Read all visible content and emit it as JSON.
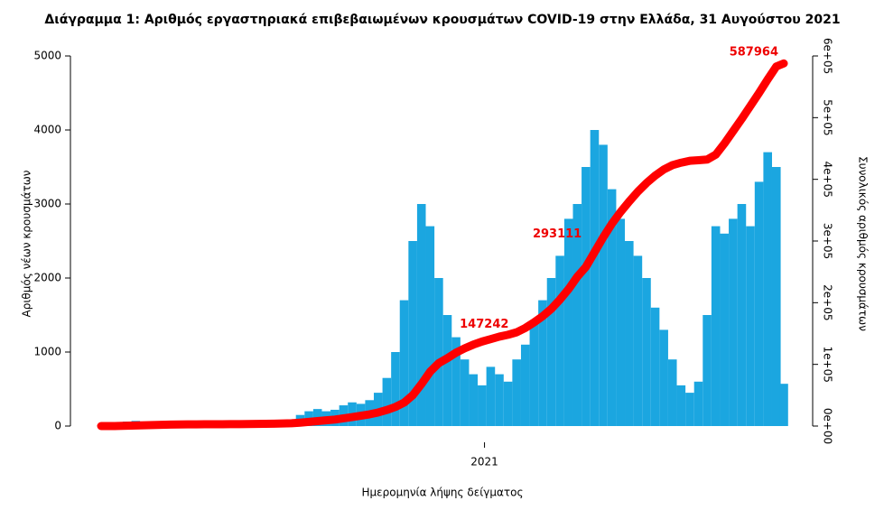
{
  "chart_data": {
    "type": "bar",
    "title": "Διάγραμμα 1: Αριθμός εργαστηριακά επιβεβαιωμένων κρουσμάτων COVID-19 στην Ελλάδα, 31 Αυγούστου 2021",
    "x_label": "Ημερομηνία λήψης δείγματος",
    "x": [
      0,
      7,
      14,
      21,
      28,
      35,
      42,
      49,
      56,
      63,
      70,
      77,
      84,
      91,
      98,
      105,
      112,
      119,
      126,
      133,
      140,
      147,
      154,
      161,
      168,
      175,
      182,
      189,
      196,
      203,
      210,
      217,
      224,
      231,
      238,
      245,
      252,
      259,
      266,
      273,
      280,
      287,
      294,
      301,
      308,
      315,
      322,
      329,
      336,
      343,
      350,
      357,
      364,
      371,
      378,
      385,
      392,
      399,
      406,
      413,
      420,
      427,
      434,
      441,
      448,
      455,
      462,
      469,
      476,
      483,
      490,
      497,
      504,
      511,
      518,
      525,
      532,
      539,
      546,
      552
    ],
    "xlim": [
      0,
      552
    ],
    "xticks": [
      {
        "value": 310,
        "label": "2021"
      }
    ],
    "ylim": [
      0,
      5000
    ],
    "yticks": [
      0,
      1000,
      2000,
      3000,
      4000,
      5000
    ],
    "y2lim": [
      0,
      600000
    ],
    "y2ticks": [
      {
        "value": 0,
        "label": "0e+00"
      },
      {
        "value": 100000,
        "label": "1e+05"
      },
      {
        "value": 200000,
        "label": "2e+05"
      },
      {
        "value": 300000,
        "label": "3e+05"
      },
      {
        "value": 400000,
        "label": "4e+05"
      },
      {
        "value": 500000,
        "label": "5e+05"
      },
      {
        "value": 600000,
        "label": "6e+05"
      }
    ],
    "series": [
      {
        "name": "Αριθμός νέων κρουσμάτων",
        "color": "#1ba6e0",
        "values": [
          3,
          20,
          40,
          60,
          70,
          60,
          50,
          40,
          20,
          15,
          15,
          10,
          10,
          10,
          15,
          15,
          20,
          25,
          30,
          35,
          35,
          40,
          90,
          150,
          200,
          230,
          200,
          220,
          280,
          320,
          300,
          350,
          450,
          650,
          1000,
          1700,
          2500,
          3000,
          2700,
          2000,
          1500,
          1200,
          900,
          700,
          550,
          800,
          700,
          600,
          900,
          1100,
          1400,
          1700,
          2000,
          2300,
          2800,
          3000,
          3500,
          4000,
          3800,
          3200,
          2800,
          2500,
          2300,
          2000,
          1600,
          1300,
          900,
          550,
          450,
          600,
          1500,
          2700,
          2600,
          2800,
          3000,
          2700,
          3300,
          3700,
          3500,
          571
        ]
      },
      {
        "name": "Συνολικός αριθμός κρουσμάτων",
        "color": "#ff0000",
        "axis": "y2",
        "values": [
          0,
          10,
          100,
          500,
          1000,
          1350,
          1700,
          2000,
          2350,
          2600,
          2700,
          2800,
          2850,
          2900,
          2950,
          3050,
          3150,
          3250,
          3400,
          3650,
          3900,
          4200,
          4500,
          5500,
          6800,
          8000,
          9300,
          10500,
          12500,
          14500,
          16800,
          19000,
          22000,
          26000,
          31000,
          38000,
          50000,
          68000,
          88000,
          102000,
          110000,
          119000,
          126000,
          132000,
          137000,
          141000,
          145000,
          148000,
          152000,
          159000,
          168000,
          178000,
          190000,
          205000,
          222000,
          242000,
          258000,
          282000,
          306000,
          328000,
          347000,
          364000,
          380000,
          394000,
          406000,
          416000,
          423000,
          427000,
          430000,
          431000,
          432000,
          440000,
          458000,
          478000,
          498000,
          519000,
          540000,
          562000,
          583000,
          587964
        ]
      }
    ],
    "annotations": [
      {
        "x": 334,
        "value": 147242
      },
      {
        "x": 393,
        "value": 293111
      },
      {
        "x": 552,
        "value": 587964
      }
    ]
  }
}
